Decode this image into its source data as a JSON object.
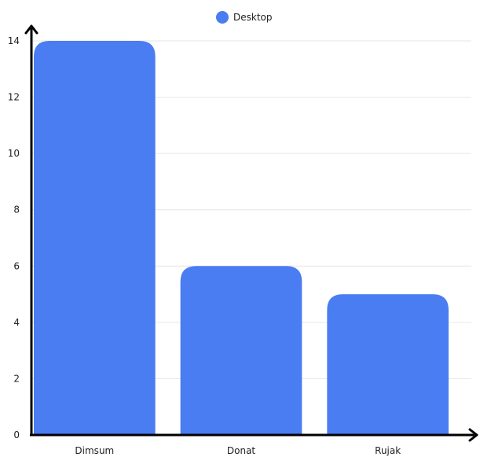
{
  "chart_data": {
    "type": "bar",
    "categories": [
      "Dimsum",
      "Donat",
      "Rujak"
    ],
    "series": [
      {
        "name": "Desktop",
        "values": [
          14,
          6,
          5
        ],
        "color": "#4a7cf2"
      }
    ],
    "title": "",
    "xlabel": "",
    "ylabel": "",
    "ylim": [
      0,
      14
    ],
    "yticks": [
      0,
      2,
      4,
      6,
      8,
      10,
      12,
      14
    ],
    "grid": true,
    "legend_position": "top-center",
    "bar_corner_style": "rounded-top"
  }
}
